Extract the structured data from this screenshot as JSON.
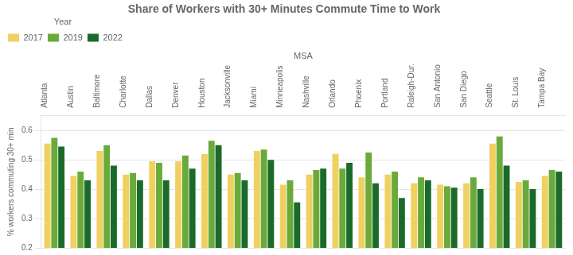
{
  "chart_data": {
    "type": "bar",
    "title": "Share of Workers with 30+ Minutes Commute Time to Work",
    "ylabel": "% workers commuting 30+ min",
    "xlabel": "MSA",
    "legend_title": "Year",
    "categories": [
      "Atlanta",
      "Austin",
      "Baltimore",
      "Charlotte",
      "Dallas",
      "Denver",
      "Houston",
      "Jacksonville",
      "Miami",
      "Minneapolis",
      "Nashville",
      "Orlando",
      "Phoenix",
      "Portland",
      "Raleigh-Dur.",
      "San Antonio",
      "San Diego",
      "Seattle",
      "St. Louis",
      "Tampa Bay"
    ],
    "series": [
      {
        "name": "2017",
        "color": "#f0d060",
        "values": [
          0.555,
          0.445,
          0.53,
          0.45,
          0.495,
          0.495,
          0.52,
          0.45,
          0.53,
          0.415,
          0.45,
          0.52,
          0.44,
          0.45,
          0.42,
          0.415,
          0.42,
          0.555,
          0.425,
          0.445
        ]
      },
      {
        "name": "2019",
        "color": "#6aaa3a",
        "values": [
          0.575,
          0.46,
          0.55,
          0.455,
          0.49,
          0.515,
          0.565,
          0.455,
          0.535,
          0.43,
          0.465,
          0.47,
          0.525,
          0.46,
          0.44,
          0.41,
          0.44,
          0.58,
          0.43,
          0.465
        ]
      },
      {
        "name": "2022",
        "color": "#1a6b2a",
        "values": [
          0.545,
          0.43,
          0.48,
          0.43,
          0.43,
          0.47,
          0.55,
          0.43,
          0.5,
          0.355,
          0.47,
          0.49,
          0.42,
          0.37,
          0.43,
          0.405,
          0.4,
          0.48,
          0.4,
          0.46
        ]
      }
    ],
    "ylim": [
      0.2,
      0.65
    ],
    "yticks": [
      0.2,
      0.3,
      0.4,
      0.5,
      0.6
    ],
    "grid": true,
    "legend": "upper left"
  }
}
